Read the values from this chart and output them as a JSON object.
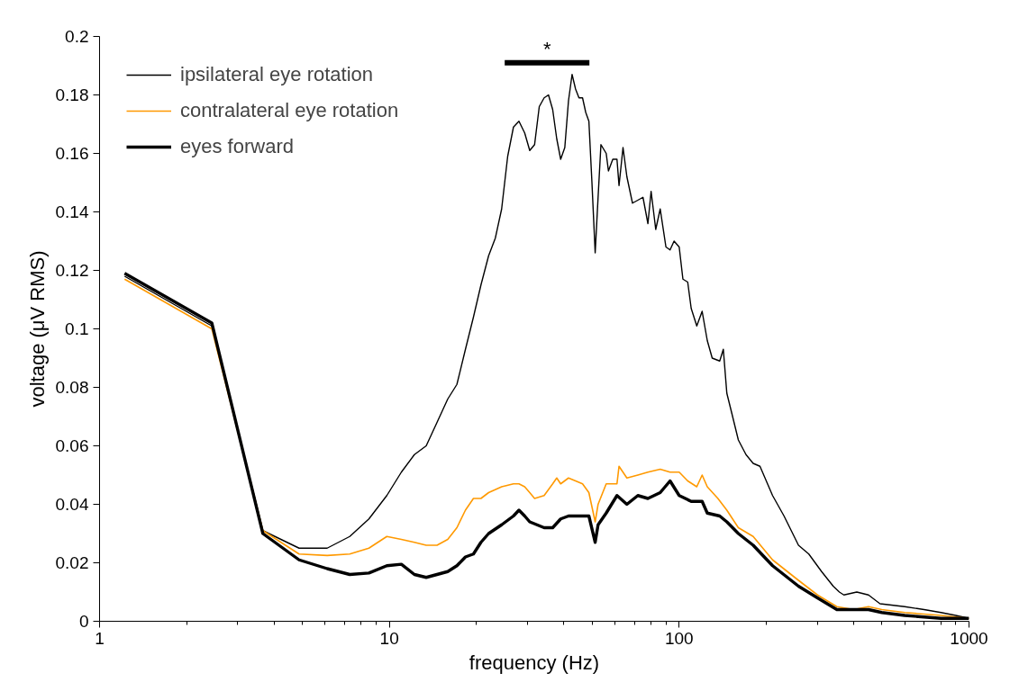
{
  "chart_data": {
    "type": "line",
    "xlabel": "frequency (Hz)",
    "ylabel": "voltage (μV RMS)",
    "log": "x",
    "xlim": [
      1,
      1000
    ],
    "xticks": [
      1,
      10,
      100,
      1000
    ],
    "ylim": [
      0,
      0.2
    ],
    "yticks": [
      0,
      0.02,
      0.04,
      0.06,
      0.08,
      0.1,
      0.12,
      0.14,
      0.16,
      0.18,
      0.2
    ],
    "grid": false,
    "legend": "top left",
    "line_style": "solid",
    "marker": "none",
    "annotations": [
      {
        "text": "*",
        "x": 35,
        "y": 0.191
      }
    ],
    "series": [
      {
        "name": "ipsilateral eye rotation",
        "color": "#000000",
        "x": [
          1.22,
          2.44,
          3.66,
          4.88,
          6.1,
          7.3,
          8.5,
          9.8,
          11,
          12.2,
          13.4,
          14.6,
          15.9,
          17.1,
          18.3,
          19.5,
          20.7,
          22,
          23.2,
          24.4,
          25.6,
          26.8,
          28,
          29.3,
          30.5,
          31.7,
          32.9,
          34.2,
          35.4,
          36.6,
          37.8,
          39,
          40.3,
          41.5,
          42.7,
          43.9,
          45.1,
          46.4,
          47.6,
          48.8,
          50,
          51.3,
          52.5,
          53.7,
          56,
          57,
          59,
          61,
          62,
          64,
          66,
          69,
          72,
          75,
          78,
          80,
          83,
          86,
          90,
          93,
          96,
          100,
          103,
          107,
          110,
          115,
          120,
          125,
          130,
          138,
          142,
          146,
          152,
          160,
          170,
          180,
          190,
          210,
          230,
          258,
          280,
          310,
          340,
          357,
          370,
          410,
          450,
          493,
          600,
          700,
          800,
          900,
          1000
        ],
        "values": [
          0.118,
          0.101,
          0.031,
          0.025,
          0.025,
          0.029,
          0.035,
          0.043,
          0.051,
          0.057,
          0.06,
          0.068,
          0.076,
          0.081,
          0.093,
          0.104,
          0.115,
          0.125,
          0.131,
          0.141,
          0.159,
          0.169,
          0.171,
          0.167,
          0.161,
          0.163,
          0.176,
          0.179,
          0.18,
          0.175,
          0.165,
          0.158,
          0.162,
          0.178,
          0.187,
          0.182,
          0.179,
          0.179,
          0.174,
          0.171,
          0.15,
          0.126,
          0.145,
          0.163,
          0.16,
          0.154,
          0.158,
          0.158,
          0.149,
          0.162,
          0.152,
          0.143,
          0.144,
          0.145,
          0.136,
          0.147,
          0.134,
          0.141,
          0.128,
          0.127,
          0.13,
          0.128,
          0.117,
          0.116,
          0.107,
          0.101,
          0.106,
          0.096,
          0.09,
          0.089,
          0.093,
          0.078,
          0.071,
          0.062,
          0.057,
          0.054,
          0.053,
          0.043,
          0.036,
          0.026,
          0.023,
          0.017,
          0.012,
          0.01,
          0.009,
          0.01,
          0.009,
          0.006,
          0.005,
          0.004,
          0.003,
          0.002,
          0.001
        ]
      },
      {
        "name": "contralateral eye rotation",
        "color": "#ff9900",
        "x": [
          1.22,
          2.44,
          3.66,
          4.88,
          6.1,
          7.3,
          8.5,
          9.8,
          11,
          12.2,
          13.4,
          14.6,
          15.9,
          17.1,
          18.3,
          19.5,
          20.7,
          22,
          24.4,
          26.8,
          28,
          29.3,
          30.5,
          31.7,
          34.2,
          36.6,
          37.8,
          39,
          41.5,
          43.9,
          46.4,
          48.8,
          51.3,
          52.5,
          56,
          61,
          62,
          66,
          72,
          78,
          86,
          93,
          100,
          107,
          115,
          120,
          125,
          136,
          146,
          160,
          180,
          210,
          258,
          300,
          350,
          400,
          450,
          500,
          600,
          800,
          1000
        ],
        "values": [
          0.117,
          0.1,
          0.031,
          0.023,
          0.0225,
          0.023,
          0.025,
          0.029,
          0.028,
          0.027,
          0.026,
          0.026,
          0.028,
          0.032,
          0.038,
          0.042,
          0.042,
          0.044,
          0.046,
          0.047,
          0.047,
          0.046,
          0.044,
          0.042,
          0.043,
          0.047,
          0.049,
          0.047,
          0.049,
          0.048,
          0.047,
          0.044,
          0.034,
          0.04,
          0.047,
          0.047,
          0.053,
          0.049,
          0.05,
          0.051,
          0.052,
          0.051,
          0.051,
          0.048,
          0.046,
          0.05,
          0.046,
          0.042,
          0.038,
          0.032,
          0.029,
          0.021,
          0.014,
          0.009,
          0.005,
          0.004,
          0.005,
          0.004,
          0.003,
          0.002,
          0.001
        ]
      },
      {
        "color": "#000000",
        "x": [
          25,
          49
        ],
        "values": [
          0.191,
          0.191
        ]
      },
      {
        "name": "eyes forward",
        "color": "#000000",
        "x": [
          1.22,
          2.44,
          3.66,
          4.88,
          6.1,
          7.3,
          8.5,
          9.8,
          11,
          12.2,
          13.4,
          14.6,
          15.9,
          17.1,
          18.3,
          19.5,
          20.7,
          22,
          24.4,
          26.8,
          28,
          29.3,
          30.5,
          34.2,
          36.6,
          39,
          41.5,
          43.9,
          48.8,
          51.3,
          52.5,
          56,
          61,
          66,
          72,
          78,
          86,
          93,
          100,
          110,
          120,
          125,
          138,
          146,
          160,
          180,
          210,
          258,
          300,
          350,
          400,
          450,
          500,
          600,
          800,
          1000
        ],
        "values": [
          0.119,
          0.102,
          0.03,
          0.021,
          0.018,
          0.016,
          0.0165,
          0.019,
          0.0195,
          0.016,
          0.015,
          0.016,
          0.017,
          0.019,
          0.022,
          0.023,
          0.027,
          0.03,
          0.033,
          0.036,
          0.038,
          0.036,
          0.034,
          0.032,
          0.032,
          0.035,
          0.036,
          0.036,
          0.036,
          0.027,
          0.033,
          0.037,
          0.043,
          0.04,
          0.043,
          0.042,
          0.044,
          0.048,
          0.043,
          0.041,
          0.041,
          0.037,
          0.036,
          0.034,
          0.03,
          0.026,
          0.019,
          0.012,
          0.008,
          0.004,
          0.004,
          0.004,
          0.003,
          0.002,
          0.001,
          0.001
        ]
      }
    ]
  }
}
